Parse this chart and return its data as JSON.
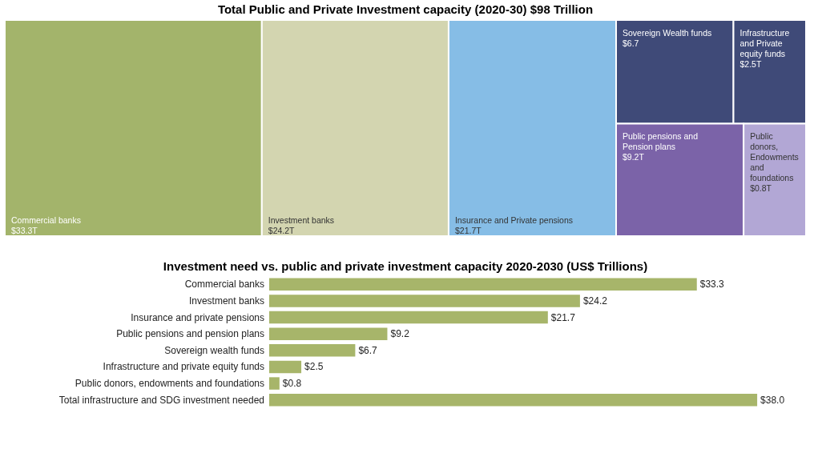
{
  "chart_data": [
    {
      "type": "other",
      "title": "Total Public and Private Investment capacity (2020-30) $98 Trillion",
      "categories": [
        "Commercial banks",
        "Investment banks",
        "Insurance and Private pensions",
        "Sovereign Wealth funds",
        "Infrastructure and Private equity funds",
        "Public pensions and Pension plans",
        "Public donors, Endowments and foundations"
      ],
      "value_labels": [
        "$33.3T",
        "$24.2T",
        "$21.7T",
        "$6.7",
        "$2.5T",
        "$9.2T",
        "$0.8T"
      ],
      "values": [
        33.3,
        24.2,
        21.7,
        6.7,
        2.5,
        9.2,
        0.8
      ],
      "colors": [
        "#a3b46b",
        "#d3d5b0",
        "#86bde6",
        "#3f4a78",
        "#3f4a78",
        "#7b63a8",
        "#b2a7d5"
      ]
    },
    {
      "type": "bar",
      "orientation": "horizontal",
      "title": "Investment need vs. public and private investment capacity 2020-2030 (US$ Trillions)",
      "categories": [
        "Commercial banks",
        "Investment banks",
        "Insurance and private pensions",
        "Public pensions and pension plans",
        "Sovereign wealth funds",
        "Infrastructure and private equity funds",
        "Public donors, endowments and foundations",
        "Total infrastructure and SDG investment needed"
      ],
      "values": [
        33.3,
        24.2,
        21.7,
        9.2,
        6.7,
        2.5,
        0.8,
        38.0
      ],
      "value_labels": [
        "$33.3",
        "$24.2",
        "$21.7",
        "$9.2",
        "$6.7",
        "$2.5",
        "$0.8",
        "$38.0"
      ],
      "color": "#a7b56a"
    }
  ]
}
